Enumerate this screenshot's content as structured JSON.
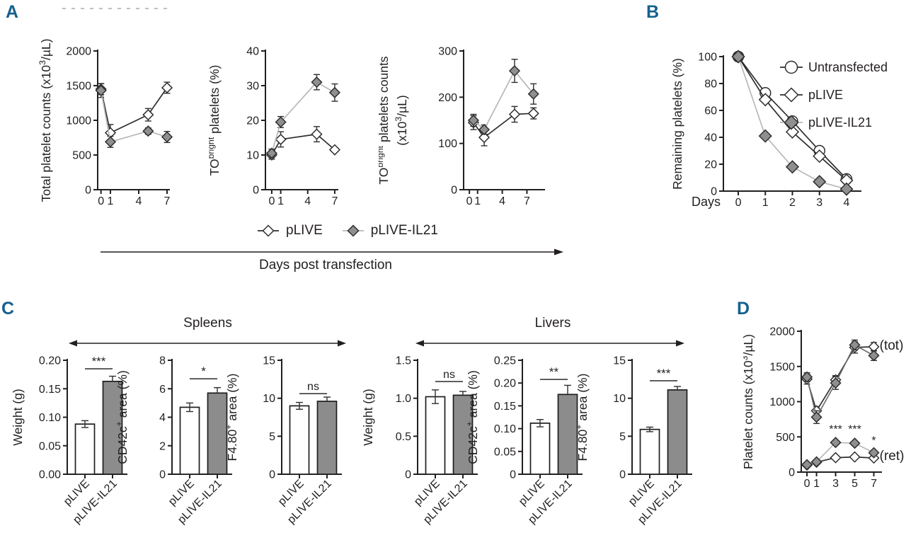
{
  "colors": {
    "panel_label": "#15618e",
    "ink": "#231f20",
    "open_line": "#2e2e2e",
    "light_line": "#b8b8b8",
    "marker_gray": "#8f8f8f",
    "bar_white": "#ffffff",
    "bar_gray": "#8c8c8c"
  },
  "panels": {
    "a": {
      "label": "A",
      "arrow_label": "Days post transfection",
      "legend": {
        "items": [
          {
            "label": "pLIVE",
            "marker": "diamond",
            "fill": "open"
          },
          {
            "label": "pLIVE-IL21",
            "marker": "diamond",
            "fill": "filled"
          }
        ]
      }
    },
    "b": {
      "label": "B"
    },
    "c": {
      "label": "C",
      "groups": [
        {
          "title": "Spleens"
        },
        {
          "title": "Livers"
        }
      ]
    },
    "d": {
      "label": "D"
    }
  },
  "chart_data": [
    {
      "id": "a1",
      "panel": "A",
      "type": "line",
      "ylabel": "Total platelet counts (x10^{3}/µL)",
      "ylim": [
        0,
        2000
      ],
      "yticks": [
        0,
        500,
        1000,
        1500,
        2000
      ],
      "xlim": [
        -0.35,
        7.3
      ],
      "xticks": [
        0,
        1,
        4,
        7
      ],
      "x": [
        0,
        1,
        5,
        7
      ],
      "series": [
        {
          "name": "pLIVE",
          "marker": "diamond",
          "fill": "open",
          "line_color": "#2e2e2e",
          "values": [
            1450,
            820,
            1080,
            1470
          ],
          "errors": [
            80,
            120,
            90,
            80
          ]
        },
        {
          "name": "pLIVE-IL21",
          "marker": "diamond",
          "fill": "filled",
          "line_color": "#b8b8b8",
          "values": [
            1430,
            690,
            845,
            760
          ],
          "errors": [
            100,
            80,
            45,
            80
          ]
        }
      ]
    },
    {
      "id": "a2",
      "panel": "A",
      "type": "line",
      "ylabel": "TO^{bright} platelets (%)",
      "ylim": [
        0,
        40
      ],
      "yticks": [
        0,
        10,
        20,
        30,
        40
      ],
      "xlim": [
        -0.7,
        7.4
      ],
      "xticks": [
        0,
        1,
        4,
        7
      ],
      "x": [
        0,
        1,
        5,
        7
      ],
      "series": [
        {
          "name": "pLIVE",
          "marker": "diamond",
          "fill": "open",
          "line_color": "#2e2e2e",
          "values": [
            10,
            14.5,
            16,
            11.5
          ],
          "errors": [
            1.2,
            2.2,
            2.2,
            0
          ]
        },
        {
          "name": "pLIVE-IL21",
          "marker": "diamond",
          "fill": "filled",
          "line_color": "#b8b8b8",
          "values": [
            10.5,
            19.5,
            31,
            28
          ],
          "errors": [
            1.2,
            1.6,
            2.2,
            2.5
          ]
        }
      ]
    },
    {
      "id": "a3",
      "panel": "A",
      "type": "line",
      "ylabel": [
        "TO^{bright} platelets counts",
        "(x10^{3}/µL)"
      ],
      "ylim": [
        0,
        300
      ],
      "yticks": [
        0,
        100,
        200,
        300
      ],
      "xlim": [
        -0.7,
        9.2
      ],
      "xticks": [
        0,
        1,
        4,
        7
      ],
      "x": [
        0.5,
        1.8,
        5.5,
        7.8
      ],
      "series": [
        {
          "name": "pLIVE",
          "marker": "diamond",
          "fill": "open",
          "line_color": "#2e2e2e",
          "values": [
            145,
            113,
            163,
            165
          ],
          "errors": [
            15,
            18,
            17,
            12
          ]
        },
        {
          "name": "pLIVE-IL21",
          "marker": "diamond",
          "fill": "filled",
          "line_color": "#b8b8b8",
          "values": [
            150,
            130,
            257,
            207
          ],
          "errors": [
            13,
            10,
            25,
            22
          ]
        }
      ]
    },
    {
      "id": "b",
      "panel": "B",
      "type": "line",
      "ylabel": "Remaining platelets (%)",
      "xlabel_prefix": "Days",
      "ylim": [
        0,
        100
      ],
      "yticks": [
        0,
        20,
        40,
        60,
        80,
        100
      ],
      "xlim": [
        -0.55,
        4.55
      ],
      "xticks": [
        0,
        1,
        2,
        3,
        4
      ],
      "x": [
        0,
        1,
        2,
        3,
        4
      ],
      "legend": true,
      "series": [
        {
          "name": "Untransfected",
          "marker": "circle",
          "fill": "open",
          "line_color": "#2e2e2e",
          "values": [
            100,
            73,
            52,
            30,
            9
          ]
        },
        {
          "name": "pLIVE",
          "marker": "diamond",
          "fill": "open",
          "line_color": "#2e2e2e",
          "values": [
            100,
            68,
            44,
            26,
            8
          ]
        },
        {
          "name": "pLIVE-IL21",
          "marker": "diamond",
          "fill": "filled",
          "line_color": "#b8b8b8",
          "values": [
            100,
            41,
            18,
            7,
            1.5
          ]
        }
      ]
    },
    {
      "id": "c1",
      "panel": "C",
      "group": "Spleens",
      "type": "bar",
      "ylabel": "Weight (g)",
      "ylim": [
        0,
        0.2
      ],
      "yticks": [
        0,
        0.05,
        0.1,
        0.15,
        0.2
      ],
      "ytick_labels": [
        "0.00",
        "0.05",
        "0.10",
        "0.15",
        "0.20"
      ],
      "categories": [
        "pLIVE",
        "pLIVE-IL21"
      ],
      "values": [
        0.088,
        0.163
      ],
      "errors": [
        0.006,
        0.009
      ],
      "sig": {
        "text": "***",
        "y": 0.185
      }
    },
    {
      "id": "c2",
      "panel": "C",
      "group": "Spleens",
      "type": "bar",
      "ylabel": "CD42c^{+} area (%)",
      "ylim": [
        0,
        8
      ],
      "yticks": [
        0,
        2,
        4,
        6,
        8
      ],
      "ytick_labels": [
        "0",
        "2",
        "4",
        "6",
        "8"
      ],
      "categories": [
        "pLIVE",
        "pLIVE-IL21"
      ],
      "values": [
        4.7,
        5.7
      ],
      "errors": [
        0.3,
        0.38
      ],
      "sig": {
        "text": "*",
        "y": 6.7
      }
    },
    {
      "id": "c3",
      "panel": "C",
      "group": "Spleens",
      "type": "bar",
      "ylabel": "F4.80^{+} area (%)",
      "ylim": [
        0,
        15
      ],
      "yticks": [
        0,
        5,
        10,
        15
      ],
      "ytick_labels": [
        "0",
        "5",
        "10",
        "15"
      ],
      "categories": [
        "pLIVE",
        "pLIVE-IL21"
      ],
      "values": [
        9.0,
        9.6
      ],
      "errors": [
        0.45,
        0.55
      ],
      "sig": {
        "text": "ns",
        "y": 10.6
      }
    },
    {
      "id": "c4",
      "panel": "C",
      "group": "Livers",
      "type": "bar",
      "ylabel": "Weight (g)",
      "ylim": [
        0,
        1.5
      ],
      "yticks": [
        0,
        0.5,
        1.0,
        1.5
      ],
      "ytick_labels": [
        "0",
        "0.5",
        "1.0",
        "1.5"
      ],
      "categories": [
        "pLIVE",
        "pLIVE-IL21"
      ],
      "values": [
        1.02,
        1.04
      ],
      "errors": [
        0.09,
        0.05
      ],
      "sig": {
        "text": "ns",
        "y": 1.22
      }
    },
    {
      "id": "c5",
      "panel": "C",
      "group": "Livers",
      "type": "bar",
      "ylabel": "CD42c^{+} area (%)",
      "ylim": [
        0,
        0.25
      ],
      "yticks": [
        0,
        0.05,
        0.1,
        0.15,
        0.2,
        0.25
      ],
      "ytick_labels": [
        "0",
        "0.05",
        "0.10",
        "0.15",
        "0.20",
        "0.25"
      ],
      "categories": [
        "pLIVE",
        "pLIVE-IL21"
      ],
      "values": [
        0.112,
        0.175
      ],
      "errors": [
        0.008,
        0.02
      ],
      "sig": {
        "text": "**",
        "y": 0.208
      }
    },
    {
      "id": "c6",
      "panel": "C",
      "group": "Livers",
      "type": "bar",
      "ylabel": "F4.80^{+} area (%)",
      "ylim": [
        0,
        15
      ],
      "yticks": [
        0,
        5,
        10,
        15
      ],
      "ytick_labels": [
        "0",
        "5",
        "10",
        "15"
      ],
      "categories": [
        "pLIVE",
        "pLIVE-IL21"
      ],
      "values": [
        5.9,
        11.1
      ],
      "errors": [
        0.3,
        0.45
      ],
      "sig": {
        "text": "***",
        "y": 12.3
      }
    },
    {
      "id": "d",
      "panel": "D",
      "type": "line",
      "ylabel": "Platelet counts (x10^{3}/µL)",
      "ylim": [
        0,
        2000
      ],
      "yticks": [
        0,
        500,
        1000,
        1500,
        2000
      ],
      "xlim": [
        -0.6,
        7.85
      ],
      "xticks": [
        0,
        1,
        3,
        5,
        7
      ],
      "x": [
        0,
        1,
        3,
        5,
        7
      ],
      "series": [
        {
          "name": "pLIVE (tot)",
          "marker": "diamond",
          "fill": "open",
          "line_color": "#2e2e2e",
          "values": [
            1320,
            870,
            1310,
            1770,
            1780
          ],
          "errors": [
            70,
            60,
            60,
            80,
            60
          ]
        },
        {
          "name": "pLIVE-IL21 (tot)",
          "marker": "diamond",
          "fill": "filled",
          "line_color": "#6e6e6e",
          "values": [
            1350,
            780,
            1265,
            1805,
            1655
          ],
          "errors": [
            60,
            90,
            90,
            70,
            70
          ]
        },
        {
          "name": "pLIVE (ret)",
          "marker": "diamond",
          "fill": "open",
          "line_color": "#2e2e2e",
          "values": [
            100,
            140,
            205,
            215,
            200
          ],
          "errors": [
            8,
            10,
            15,
            15,
            12
          ]
        },
        {
          "name": "pLIVE-IL21 (ret)",
          "marker": "diamond",
          "fill": "filled",
          "line_color": "#b8b8b8",
          "values": [
            105,
            145,
            420,
            410,
            275
          ],
          "errors": [
            10,
            12,
            25,
            20,
            20
          ]
        }
      ],
      "annotations": [
        {
          "x": 3,
          "y": 560,
          "text": "***"
        },
        {
          "x": 5,
          "y": 560,
          "text": "***"
        },
        {
          "x": 7,
          "y": 395,
          "text": "*"
        },
        {
          "x": 7.6,
          "y": 1740,
          "text": "(tot)",
          "anchor": "start",
          "size": 19
        },
        {
          "x": 7.6,
          "y": 170,
          "text": "(ret)",
          "anchor": "start",
          "size": 19
        }
      ]
    }
  ]
}
